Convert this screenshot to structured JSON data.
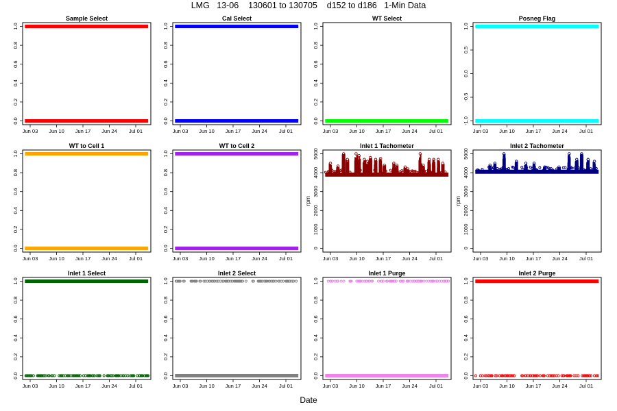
{
  "figure": {
    "title": "LMG   13-06    130601 to 130705    d152 to d186   1-Min Data",
    "xlabel": "Date"
  },
  "chart_data": [
    {
      "type": "scatter",
      "title": "Sample Select",
      "color": "#ff0000",
      "ylim": [
        0,
        1
      ],
      "yticks": [
        "0.0",
        "0.2",
        "0.4",
        "0.6",
        "0.8",
        "1.0"
      ],
      "ytick_values": [
        0,
        0.2,
        0.4,
        0.6,
        0.8,
        1.0
      ],
      "ylabel": "",
      "xticks": [
        "Jun 03",
        "Jun 10",
        "Jun 17",
        "Jun 24",
        "Jul 01"
      ],
      "xtick_days": [
        3,
        10,
        17,
        24,
        31
      ],
      "xlim": [
        152,
        186
      ],
      "pattern": "binary",
      "levels": [
        0,
        1
      ],
      "low_density": "full",
      "high_density": "full"
    },
    {
      "type": "scatter",
      "title": "Cal Select",
      "color": "#0000ff",
      "ylim": [
        0,
        1
      ],
      "yticks": [
        "0.0",
        "0.2",
        "0.4",
        "0.6",
        "0.8",
        "1.0"
      ],
      "ytick_values": [
        0,
        0.2,
        0.4,
        0.6,
        0.8,
        1.0
      ],
      "ylabel": "",
      "xticks": [
        "Jun 03",
        "Jun 10",
        "Jun 17",
        "Jun 24",
        "Jul 01"
      ],
      "xtick_days": [
        3,
        10,
        17,
        24,
        31
      ],
      "xlim": [
        152,
        186
      ],
      "pattern": "binary",
      "levels": [
        0,
        1
      ],
      "low_density": "full",
      "high_density": "full"
    },
    {
      "type": "scatter",
      "title": "WT Select",
      "color": "#00ff00",
      "ylim": [
        0,
        1
      ],
      "yticks": [
        "0.0",
        "0.2",
        "0.4",
        "0.6",
        "0.8",
        "1.0"
      ],
      "ytick_values": [
        0,
        0.2,
        0.4,
        0.6,
        0.8,
        1.0
      ],
      "ylabel": "",
      "xticks": [
        "Jun 03",
        "Jun 10",
        "Jun 17",
        "Jun 24",
        "Jul 01"
      ],
      "xtick_days": [
        3,
        10,
        17,
        24,
        31
      ],
      "xlim": [
        152,
        186
      ],
      "pattern": "binary",
      "levels": [
        0
      ],
      "low_density": "full",
      "high_density": "none"
    },
    {
      "type": "scatter",
      "title": "Posneg Flag",
      "color": "#00ffff",
      "ylim": [
        -1,
        1
      ],
      "yticks": [
        "-1.0",
        "-0.5",
        "0.0",
        "0.5",
        "1.0"
      ],
      "ytick_values": [
        -1,
        -0.5,
        0,
        0.5,
        1
      ],
      "ylabel": "",
      "xticks": [
        "Jun 03",
        "Jun 10",
        "Jun 17",
        "Jun 24",
        "Jul 01"
      ],
      "xtick_days": [
        3,
        10,
        17,
        24,
        31
      ],
      "xlim": [
        152,
        186
      ],
      "pattern": "binary",
      "levels": [
        -1,
        1
      ],
      "low_density": "full",
      "high_density": "full"
    },
    {
      "type": "scatter",
      "title": "WT to Cell 1",
      "color": "#ffa500",
      "ylim": [
        0,
        1
      ],
      "yticks": [
        "0.0",
        "0.2",
        "0.4",
        "0.6",
        "0.8",
        "1.0"
      ],
      "ytick_values": [
        0,
        0.2,
        0.4,
        0.6,
        0.8,
        1.0
      ],
      "ylabel": "",
      "xticks": [
        "Jun 03",
        "Jun 10",
        "Jun 17",
        "Jun 24",
        "Jul 01"
      ],
      "xtick_days": [
        3,
        10,
        17,
        24,
        31
      ],
      "xlim": [
        152,
        186
      ],
      "pattern": "binary",
      "levels": [
        0,
        1
      ],
      "low_density": "full",
      "high_density": "full"
    },
    {
      "type": "scatter",
      "title": "WT to Cell 2",
      "color": "#a020f0",
      "ylim": [
        0,
        1
      ],
      "yticks": [
        "0.0",
        "0.2",
        "0.4",
        "0.6",
        "0.8",
        "1.0"
      ],
      "ytick_values": [
        0,
        0.2,
        0.4,
        0.6,
        0.8,
        1.0
      ],
      "ylabel": "",
      "xticks": [
        "Jun 03",
        "Jun 10",
        "Jun 17",
        "Jun 24",
        "Jul 01"
      ],
      "xtick_days": [
        3,
        10,
        17,
        24,
        31
      ],
      "xlim": [
        152,
        186
      ],
      "pattern": "binary",
      "levels": [
        0,
        1
      ],
      "low_density": "full",
      "high_density": "full"
    },
    {
      "type": "scatter",
      "title": "Inlet 1 Tachometer",
      "color": "#8b0000",
      "ylim": [
        0,
        5000
      ],
      "yticks": [
        "0",
        "1000",
        "2000",
        "3000",
        "4000",
        "5000"
      ],
      "ytick_values": [
        0,
        1000,
        2000,
        3000,
        4000,
        5000
      ],
      "ylabel": "rpm",
      "xticks": [
        "Jun 03",
        "Jun 10",
        "Jun 17",
        "Jun 24",
        "Jul 01"
      ],
      "xtick_days": [
        3,
        10,
        17,
        24,
        31
      ],
      "xlim": [
        152,
        186
      ],
      "pattern": "tach",
      "baseline": 3900,
      "bursts": [
        {
          "day": 154.0,
          "peak": 4500
        },
        {
          "day": 156.0,
          "peak": 4350
        },
        {
          "day": 157.5,
          "peak": 5000
        },
        {
          "day": 158.5,
          "peak": 4700
        },
        {
          "day": 160.8,
          "peak": 5000
        },
        {
          "day": 161.6,
          "peak": 4900
        },
        {
          "day": 163.0,
          "peak": 4700
        },
        {
          "day": 163.8,
          "peak": 4600
        },
        {
          "day": 164.6,
          "peak": 4800
        },
        {
          "day": 166.0,
          "peak": 4700
        },
        {
          "day": 167.3,
          "peak": 4750
        },
        {
          "day": 168.3,
          "peak": 4400
        },
        {
          "day": 170.8,
          "peak": 4500
        },
        {
          "day": 171.6,
          "peak": 4400
        },
        {
          "day": 173.8,
          "peak": 4300
        },
        {
          "day": 174.5,
          "peak": 4200
        },
        {
          "day": 177.8,
          "peak": 5000
        },
        {
          "day": 178.6,
          "peak": 4400
        },
        {
          "day": 180.2,
          "peak": 4700
        },
        {
          "day": 181.4,
          "peak": 4700
        },
        {
          "day": 182.6,
          "peak": 4700
        },
        {
          "day": 183.8,
          "peak": 4500
        }
      ]
    },
    {
      "type": "scatter",
      "title": "Inlet 2 Tachometer",
      "color": "#000080",
      "ylim": [
        0,
        5000
      ],
      "yticks": [
        "0",
        "1000",
        "2000",
        "3000",
        "4000",
        "5000"
      ],
      "ytick_values": [
        0,
        1000,
        2000,
        3000,
        4000,
        5000
      ],
      "ylabel": "rpm",
      "xticks": [
        "Jun 03",
        "Jun 10",
        "Jun 17",
        "Jun 24",
        "Jul 01"
      ],
      "xtick_days": [
        3,
        10,
        17,
        24,
        31
      ],
      "xlim": [
        152,
        186
      ],
      "pattern": "tach",
      "baseline": 4050,
      "bursts": [
        {
          "day": 156.5,
          "peak": 4400
        },
        {
          "day": 157.8,
          "peak": 4500
        },
        {
          "day": 160.2,
          "peak": 5000
        },
        {
          "day": 163.5,
          "peak": 4600
        },
        {
          "day": 166.0,
          "peak": 4500
        },
        {
          "day": 168.2,
          "peak": 4500
        },
        {
          "day": 171.0,
          "peak": 4300
        },
        {
          "day": 174.8,
          "peak": 4300
        },
        {
          "day": 177.5,
          "peak": 5000
        },
        {
          "day": 179.5,
          "peak": 4700
        },
        {
          "day": 180.8,
          "peak": 5000
        },
        {
          "day": 182.5,
          "peak": 4700
        },
        {
          "day": 184.2,
          "peak": 4600
        }
      ]
    },
    {
      "type": "scatter",
      "title": "Inlet 1 Select",
      "color": "#006400",
      "ylim": [
        0,
        1
      ],
      "yticks": [
        "0.0",
        "0.2",
        "0.4",
        "0.6",
        "0.8",
        "1.0"
      ],
      "ytick_values": [
        0,
        0.2,
        0.4,
        0.6,
        0.8,
        1.0
      ],
      "ylabel": "",
      "xticks": [
        "Jun 03",
        "Jun 10",
        "Jun 17",
        "Jun 24",
        "Jul 01"
      ],
      "xtick_days": [
        3,
        10,
        17,
        24,
        31
      ],
      "xlim": [
        152,
        186
      ],
      "pattern": "binary",
      "levels": [
        0,
        1
      ],
      "low_density": "sparse",
      "high_density": "full"
    },
    {
      "type": "scatter",
      "title": "Inlet 2 Select",
      "color": "#808080",
      "ylim": [
        0,
        1
      ],
      "yticks": [
        "0.0",
        "0.2",
        "0.4",
        "0.6",
        "0.8",
        "1.0"
      ],
      "ytick_values": [
        0,
        0.2,
        0.4,
        0.6,
        0.8,
        1.0
      ],
      "ylabel": "",
      "xticks": [
        "Jun 03",
        "Jun 10",
        "Jun 17",
        "Jun 24",
        "Jul 01"
      ],
      "xtick_days": [
        3,
        10,
        17,
        24,
        31
      ],
      "xlim": [
        152,
        186
      ],
      "pattern": "binary",
      "levels": [
        0,
        1
      ],
      "low_density": "full",
      "high_density": "sparse"
    },
    {
      "type": "scatter",
      "title": "Inlet 1 Purge",
      "color": "#ee82ee",
      "ylim": [
        0,
        1
      ],
      "yticks": [
        "0.0",
        "0.2",
        "0.4",
        "0.6",
        "0.8",
        "1.0"
      ],
      "ytick_values": [
        0,
        0.2,
        0.4,
        0.6,
        0.8,
        1.0
      ],
      "ylabel": "",
      "xticks": [
        "Jun 03",
        "Jun 10",
        "Jun 17",
        "Jun 24",
        "Jul 01"
      ],
      "xtick_days": [
        3,
        10,
        17,
        24,
        31
      ],
      "xlim": [
        152,
        186
      ],
      "pattern": "binary",
      "levels": [
        0,
        1
      ],
      "low_density": "full",
      "high_density": "sparse"
    },
    {
      "type": "scatter",
      "title": "Inlet 2 Purge",
      "color": "#ff0000",
      "ylim": [
        0,
        1
      ],
      "yticks": [
        "0.0",
        "0.2",
        "0.4",
        "0.6",
        "0.8",
        "1.0"
      ],
      "ytick_values": [
        0,
        0.2,
        0.4,
        0.6,
        0.8,
        1.0
      ],
      "ylabel": "",
      "xticks": [
        "Jun 03",
        "Jun 10",
        "Jun 17",
        "Jun 24",
        "Jul 01"
      ],
      "xtick_days": [
        3,
        10,
        17,
        24,
        31
      ],
      "xlim": [
        152,
        186
      ],
      "pattern": "binary",
      "levels": [
        0,
        1
      ],
      "low_density": "sparse",
      "high_density": "full"
    }
  ]
}
